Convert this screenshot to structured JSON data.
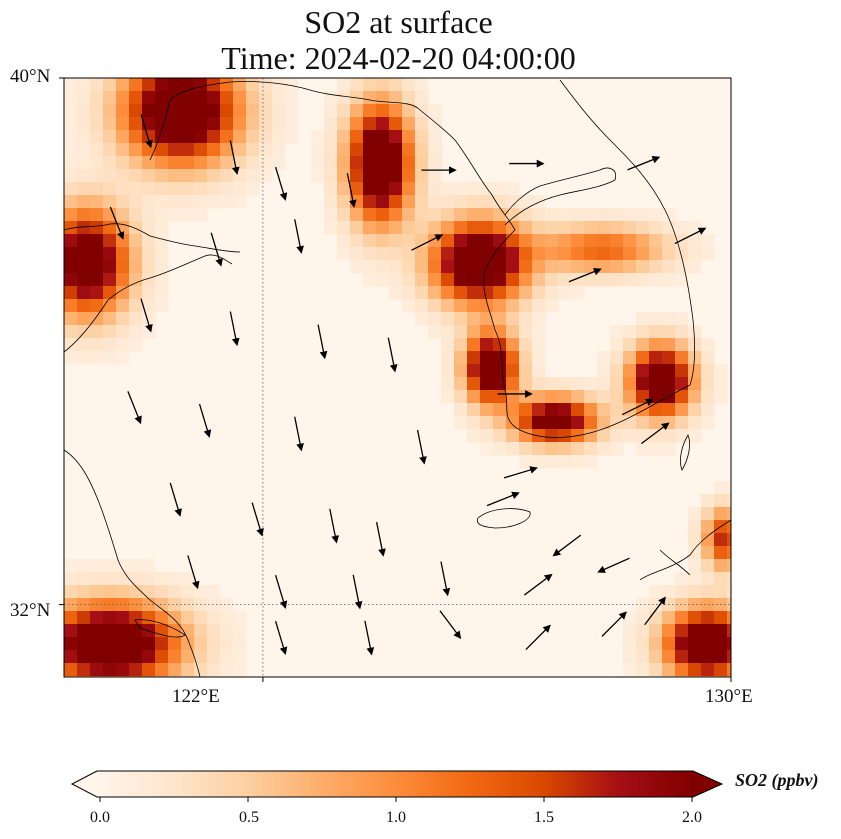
{
  "title": {
    "line1": "SO2 at surface",
    "line2": "Time: 2024-02-20 04:00:00"
  },
  "map": {
    "lon_range": [
      118.6,
      130
    ],
    "lat_range": [
      30.9,
      40
    ],
    "lat_labels": [
      {
        "value": 40,
        "text": "40°N"
      },
      {
        "value": 32,
        "text": "32°N"
      }
    ],
    "lon_labels": [
      {
        "value": 122,
        "text": "122°E"
      },
      {
        "value": 130,
        "text": "130°E"
      }
    ],
    "gridlines": {
      "lon": [
        122
      ],
      "lat": [
        32
      ],
      "style": "dotted"
    },
    "hotspots": [
      {
        "lon": 120.6,
        "lat": 39.5,
        "rx": 1.1,
        "ry": 0.9,
        "intensity": 2.0
      },
      {
        "lon": 124.0,
        "lat": 38.7,
        "rx": 0.6,
        "ry": 1.0,
        "intensity": 2.0
      },
      {
        "lon": 119.0,
        "lat": 37.2,
        "rx": 0.8,
        "ry": 0.9,
        "intensity": 1.8
      },
      {
        "lon": 125.7,
        "lat": 37.2,
        "rx": 0.9,
        "ry": 0.7,
        "intensity": 2.0
      },
      {
        "lon": 125.9,
        "lat": 35.6,
        "rx": 0.5,
        "ry": 0.6,
        "intensity": 1.9
      },
      {
        "lon": 127.0,
        "lat": 34.8,
        "rx": 0.8,
        "ry": 0.4,
        "intensity": 1.7
      },
      {
        "lon": 128.8,
        "lat": 35.4,
        "rx": 0.6,
        "ry": 0.6,
        "intensity": 1.9
      },
      {
        "lon": 119.4,
        "lat": 31.4,
        "rx": 1.3,
        "ry": 0.7,
        "intensity": 2.0
      },
      {
        "lon": 129.6,
        "lat": 31.4,
        "rx": 0.8,
        "ry": 0.6,
        "intensity": 2.0
      },
      {
        "lon": 129.9,
        "lat": 33.0,
        "rx": 0.4,
        "ry": 0.5,
        "intensity": 1.2
      },
      {
        "lon": 127.8,
        "lat": 37.4,
        "rx": 1.2,
        "ry": 0.4,
        "intensity": 0.9
      }
    ],
    "wind_vectors": [
      {
        "lon": 120.0,
        "lat": 39.2,
        "u": 0.3,
        "v": -1.0
      },
      {
        "lon": 121.5,
        "lat": 38.8,
        "u": 0.2,
        "v": -1.0
      },
      {
        "lon": 122.3,
        "lat": 38.4,
        "u": 0.3,
        "v": -1.0
      },
      {
        "lon": 123.5,
        "lat": 38.3,
        "u": 0.2,
        "v": -1.0
      },
      {
        "lon": 125.0,
        "lat": 38.6,
        "u": 1.0,
        "v": 0.0
      },
      {
        "lon": 126.5,
        "lat": 38.7,
        "u": 1.0,
        "v": 0.0
      },
      {
        "lon": 128.5,
        "lat": 38.7,
        "u": 1.0,
        "v": 0.4
      },
      {
        "lon": 119.5,
        "lat": 37.8,
        "u": 0.4,
        "v": -1.0
      },
      {
        "lon": 121.2,
        "lat": 37.4,
        "u": 0.3,
        "v": -1.0
      },
      {
        "lon": 122.6,
        "lat": 37.6,
        "u": 0.2,
        "v": -1.0
      },
      {
        "lon": 124.8,
        "lat": 37.5,
        "u": 1.0,
        "v": 0.5
      },
      {
        "lon": 127.5,
        "lat": 37.0,
        "u": 1.0,
        "v": 0.4
      },
      {
        "lon": 129.3,
        "lat": 37.6,
        "u": 1.0,
        "v": 0.5
      },
      {
        "lon": 120.0,
        "lat": 36.4,
        "u": 0.3,
        "v": -1.0
      },
      {
        "lon": 121.5,
        "lat": 36.2,
        "u": 0.2,
        "v": -1.0
      },
      {
        "lon": 123.0,
        "lat": 36.0,
        "u": 0.2,
        "v": -1.0
      },
      {
        "lon": 124.2,
        "lat": 35.8,
        "u": 0.2,
        "v": -1.0
      },
      {
        "lon": 126.3,
        "lat": 35.2,
        "u": 1.0,
        "v": 0.0
      },
      {
        "lon": 128.4,
        "lat": 35.0,
        "u": 1.0,
        "v": 0.5
      },
      {
        "lon": 119.8,
        "lat": 35.0,
        "u": 0.4,
        "v": -1.0
      },
      {
        "lon": 121.0,
        "lat": 34.8,
        "u": 0.3,
        "v": -1.0
      },
      {
        "lon": 122.6,
        "lat": 34.6,
        "u": 0.2,
        "v": -1.0
      },
      {
        "lon": 124.7,
        "lat": 34.4,
        "u": 0.2,
        "v": -1.0
      },
      {
        "lon": 126.4,
        "lat": 34.0,
        "u": 1.0,
        "v": 0.3
      },
      {
        "lon": 128.7,
        "lat": 34.6,
        "u": 0.8,
        "v": 0.6
      },
      {
        "lon": 120.5,
        "lat": 33.6,
        "u": 0.3,
        "v": -1.0
      },
      {
        "lon": 121.9,
        "lat": 33.3,
        "u": 0.3,
        "v": -1.0
      },
      {
        "lon": 123.2,
        "lat": 33.2,
        "u": 0.2,
        "v": -1.0
      },
      {
        "lon": 124.0,
        "lat": 33.0,
        "u": 0.2,
        "v": -1.0
      },
      {
        "lon": 126.1,
        "lat": 33.6,
        "u": 1.0,
        "v": 0.4
      },
      {
        "lon": 127.2,
        "lat": 32.9,
        "u": -0.8,
        "v": -0.6
      },
      {
        "lon": 128.0,
        "lat": 32.6,
        "u": -0.9,
        "v": -0.4
      },
      {
        "lon": 120.8,
        "lat": 32.5,
        "u": 0.3,
        "v": -1.0
      },
      {
        "lon": 122.3,
        "lat": 32.2,
        "u": 0.3,
        "v": -1.0
      },
      {
        "lon": 123.6,
        "lat": 32.2,
        "u": 0.2,
        "v": -1.0
      },
      {
        "lon": 125.1,
        "lat": 32.4,
        "u": 0.2,
        "v": -1.0
      },
      {
        "lon": 126.7,
        "lat": 32.3,
        "u": 0.8,
        "v": 0.6
      },
      {
        "lon": 122.3,
        "lat": 31.5,
        "u": 0.3,
        "v": -1.0
      },
      {
        "lon": 123.8,
        "lat": 31.5,
        "u": 0.2,
        "v": -1.0
      },
      {
        "lon": 125.2,
        "lat": 31.7,
        "u": 0.6,
        "v": -0.8
      },
      {
        "lon": 126.7,
        "lat": 31.5,
        "u": 0.6,
        "v": 0.6
      },
      {
        "lon": 128.0,
        "lat": 31.7,
        "u": 0.7,
        "v": 0.7
      },
      {
        "lon": 128.7,
        "lat": 31.9,
        "u": 0.6,
        "v": 0.8
      }
    ]
  },
  "colorbar": {
    "label": "SO2 (ppbv)",
    "vmin": 0.0,
    "vmax": 2.0,
    "ticks": [
      "0.0",
      "0.5",
      "1.0",
      "1.5",
      "2.0"
    ],
    "colormap": [
      "#fff5eb",
      "#fee6ce",
      "#fdd0a2",
      "#fdae6b",
      "#fd8d3c",
      "#f16913",
      "#d94801",
      "#a50f15",
      "#800000"
    ],
    "extend": "both"
  }
}
